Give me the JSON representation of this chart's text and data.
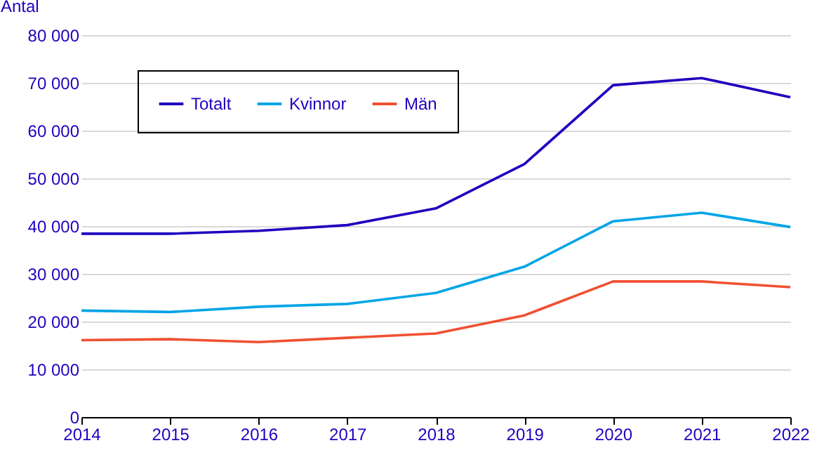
{
  "chart_data": {
    "type": "line",
    "ylabel": "Antal",
    "x": [
      2014,
      2015,
      2016,
      2017,
      2018,
      2019,
      2020,
      2021,
      2022
    ],
    "series": [
      {
        "name": "Totalt",
        "color": "#1e00be",
        "values": [
          38400,
          38400,
          39000,
          40200,
          43700,
          53000,
          69500,
          71000,
          67000
        ]
      },
      {
        "name": "Kvinnor",
        "color": "#00a5e6",
        "values": [
          22300,
          22000,
          23100,
          23700,
          26000,
          31500,
          41000,
          42800,
          39800
        ]
      },
      {
        "name": "Män",
        "color": "#f05032",
        "values": [
          16100,
          16300,
          15700,
          16600,
          17500,
          21300,
          28400,
          28400,
          27200
        ]
      }
    ],
    "xlim": [
      2014,
      2022
    ],
    "xticks": [
      2014,
      2015,
      2016,
      2017,
      2018,
      2019,
      2020,
      2021,
      2022
    ],
    "ylim": [
      0,
      80000
    ],
    "yticks": [
      0,
      {
        "value": 10000,
        "label": "10 000"
      },
      {
        "value": 20000,
        "label": "20 000"
      },
      {
        "value": 30000,
        "label": "30 000"
      },
      {
        "value": 40000,
        "label": "40 000"
      },
      {
        "value": 50000,
        "label": "50 000"
      },
      {
        "value": 60000,
        "label": "60 000"
      },
      {
        "value": 70000,
        "label": "70 000"
      },
      {
        "value": 80000,
        "label": "80 000"
      }
    ],
    "grid": "y",
    "legend": "top left",
    "line_style": "solid"
  }
}
